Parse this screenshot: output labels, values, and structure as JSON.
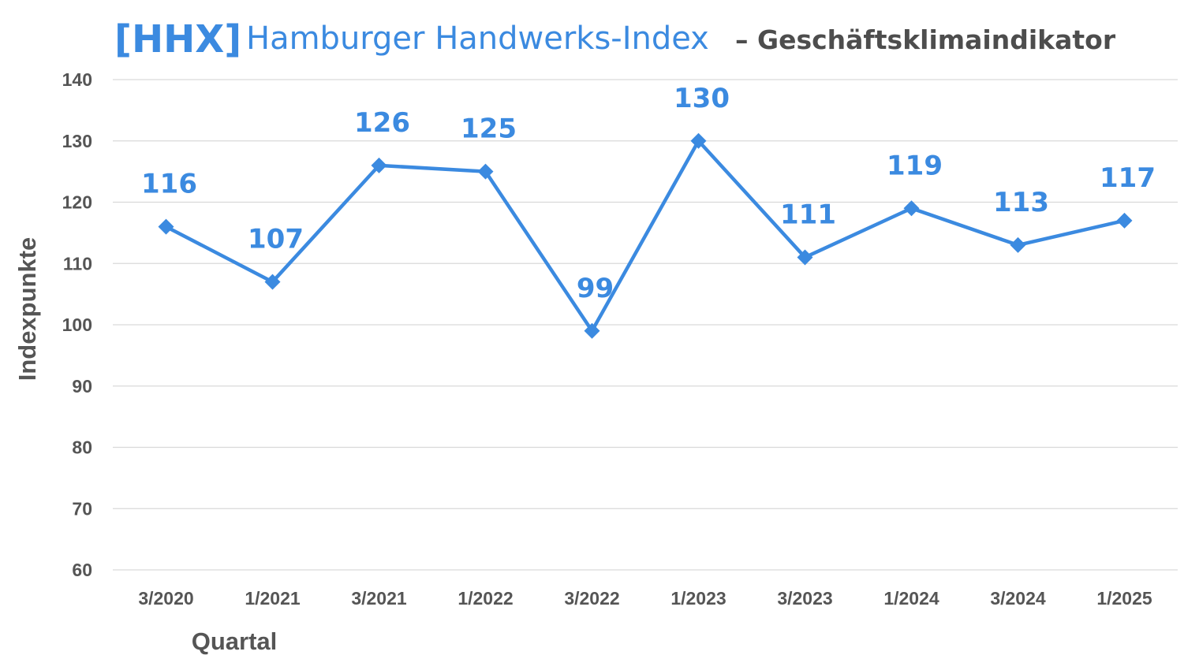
{
  "header": {
    "brand": "[HHX]",
    "title": "Hamburger Handwerks-Index",
    "subtitle": "– Geschäftsklimaindikator"
  },
  "colors": {
    "accent": "#3b8ae0",
    "subtitle": "#4d4d4d",
    "axis_text": "#555555",
    "grid": "#d9d9d9"
  },
  "chart_data": {
    "type": "line",
    "title": "Hamburger Handwerks-Index – Geschäftsklimaindikator",
    "xlabel": "Quartal",
    "ylabel": "Indexpunkte",
    "ylim": [
      60,
      140
    ],
    "yticks": [
      60,
      70,
      80,
      90,
      100,
      110,
      120,
      130,
      140
    ],
    "grid": "horizontal",
    "categories": [
      "3/2020",
      "1/2021",
      "3/2021",
      "1/2022",
      "3/2022",
      "1/2023",
      "3/2023",
      "1/2024",
      "3/2024",
      "1/2025"
    ],
    "series": [
      {
        "values": [
          116,
          107,
          126,
          125,
          99,
          130,
          111,
          119,
          113,
          117
        ],
        "data_labels": [
          "116",
          "107",
          "126",
          "125",
          "99",
          "130",
          "111",
          "119",
          "113",
          "117"
        ],
        "marker": "diamond",
        "color": "#3b8ae0"
      }
    ]
  }
}
